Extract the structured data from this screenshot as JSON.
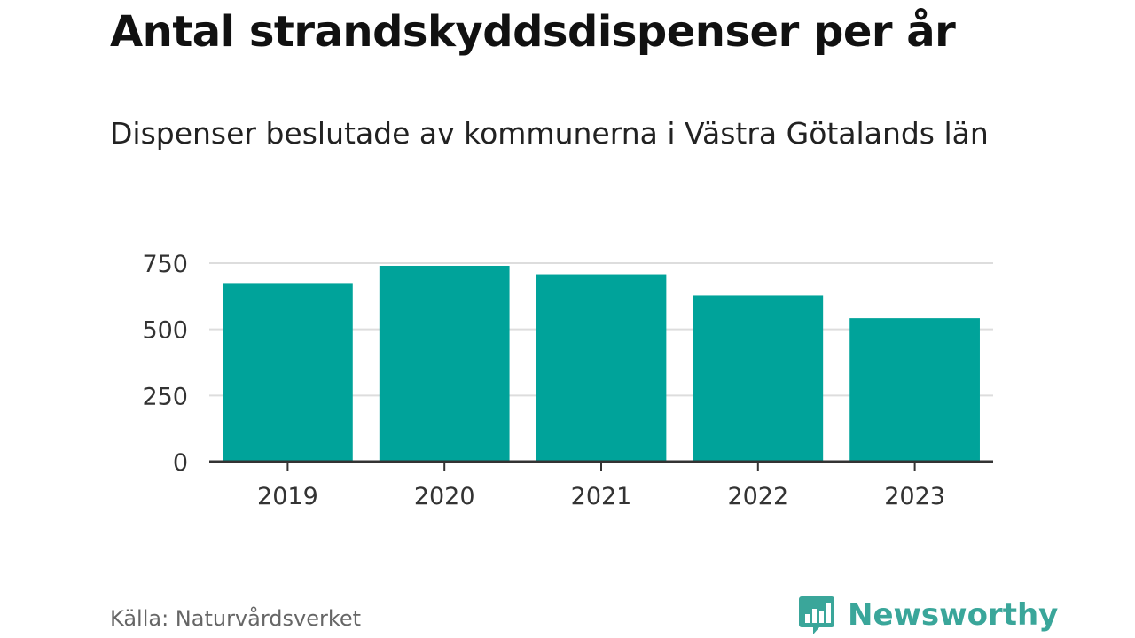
{
  "brand": {
    "name": "Newsworthy",
    "logo_icon": "bar-chart-speech-bubble-icon",
    "accent_color": "#3aa69a"
  },
  "source": "Källa: Naturvårdsverket",
  "chart_data": {
    "type": "bar",
    "title": "Antal strandskyddsdispenser per år",
    "subtitle": "Dispenser beslutade av kommunerna i Västra Götalands län",
    "xlabel": "",
    "ylabel": "",
    "categories": [
      "2019",
      "2020",
      "2021",
      "2022",
      "2023"
    ],
    "values": [
      675,
      740,
      708,
      628,
      542
    ],
    "ylim": [
      0,
      750
    ],
    "yticks": [
      0,
      250,
      500,
      750
    ],
    "grid": true,
    "legend": "none",
    "bar_color": "#00a39a",
    "grid_color": "#dddddd",
    "axis_color": "#333333"
  }
}
